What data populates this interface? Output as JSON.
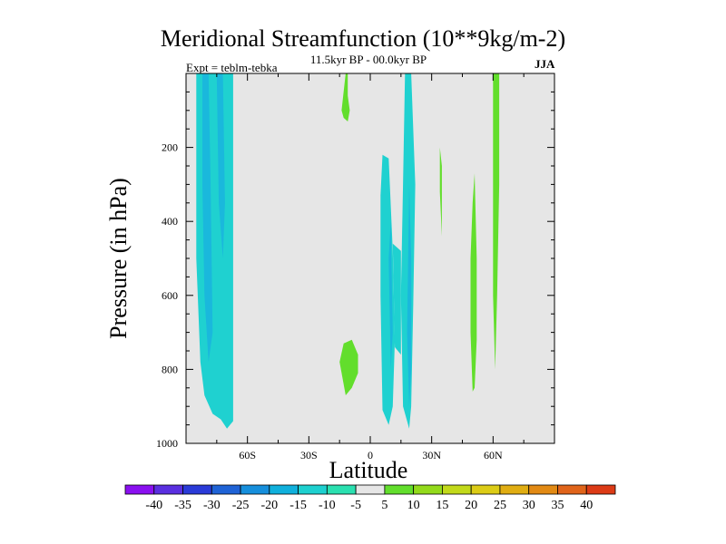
{
  "chart_data": {
    "type": "contour",
    "title": "Meridional Streamfunction (10**9kg/m-2)",
    "subtitle": "11.5kyr BP - 00.0kyr BP",
    "experiment_label": "Expt = teblm-tebka",
    "season": "JJA",
    "xlabel": "Latitude",
    "ylabel": "Pressure (in hPa)",
    "xlim": [
      -90,
      90
    ],
    "ylim": [
      1000,
      0
    ],
    "x_ticks": [
      {
        "value": -60,
        "label": "60S"
      },
      {
        "value": -30,
        "label": "30S"
      },
      {
        "value": 0,
        "label": "0"
      },
      {
        "value": 30,
        "label": "30N"
      },
      {
        "value": 60,
        "label": "60N"
      }
    ],
    "y_ticks": [
      {
        "value": 200,
        "label": "200"
      },
      {
        "value": 400,
        "label": "400"
      },
      {
        "value": 600,
        "label": "600"
      },
      {
        "value": 800,
        "label": "800"
      },
      {
        "value": 1000,
        "label": "1000"
      }
    ],
    "background_color": "#e6e6e6",
    "colorbar": {
      "levels": [
        -40,
        -35,
        -30,
        -25,
        -20,
        -15,
        -10,
        -5,
        5,
        10,
        15,
        20,
        25,
        30,
        35,
        40
      ],
      "colors": [
        "#8a10f0",
        "#5a2fe0",
        "#2a3bd8",
        "#1f63d6",
        "#168fdc",
        "#10b0dc",
        "#1dd0cf",
        "#2ae0b0",
        "#e6e6e6",
        "#62de2c",
        "#93da1b",
        "#c2d91a",
        "#dccc16",
        "#e0ad12",
        "#e28a14",
        "#e0641a",
        "#dc3b16"
      ]
    },
    "regions": [
      {
        "name": "region-70s-band",
        "level": "-10",
        "color": "#1fd1d0",
        "points": [
          [
            -85,
            0
          ],
          [
            -67,
            0
          ],
          [
            -67,
            940
          ],
          [
            -70,
            960
          ],
          [
            -73,
            935
          ],
          [
            -77,
            920
          ],
          [
            -81,
            870
          ],
          [
            -83,
            780
          ],
          [
            -85,
            500
          ]
        ]
      },
      {
        "name": "region-75s-core",
        "level": "-15",
        "color": "#1ab8dc",
        "points": [
          [
            -82,
            0
          ],
          [
            -79,
            0
          ],
          [
            -78,
            300
          ],
          [
            -77,
            700
          ],
          [
            -79,
            780
          ],
          [
            -81,
            600
          ],
          [
            -82,
            300
          ]
        ]
      },
      {
        "name": "region-70s-core",
        "level": "-15",
        "color": "#1ab8dc",
        "points": [
          [
            -75,
            0
          ],
          [
            -72,
            0
          ],
          [
            -71,
            350
          ],
          [
            -72,
            500
          ],
          [
            -74,
            350
          ]
        ]
      },
      {
        "name": "region-10s-south-patch",
        "level": "5",
        "color": "#62de2c",
        "points": [
          [
            -12,
            870
          ],
          [
            -15,
            780
          ],
          [
            -13,
            730
          ],
          [
            -9,
            720
          ],
          [
            -6,
            760
          ],
          [
            -6,
            810
          ],
          [
            -9,
            850
          ]
        ]
      },
      {
        "name": "region-10s-north-patch",
        "level": "5",
        "color": "#62de2c",
        "points": [
          [
            -12,
            0
          ],
          [
            -11,
            0
          ],
          [
            -11,
            60
          ],
          [
            -10,
            100
          ],
          [
            -11,
            130
          ],
          [
            -13,
            120
          ],
          [
            -14,
            100
          ]
        ]
      },
      {
        "name": "region-eq-band",
        "level": "-10",
        "color": "#1fd1d0",
        "points": [
          [
            5,
            330
          ],
          [
            6,
            220
          ],
          [
            9,
            230
          ],
          [
            11,
            480
          ],
          [
            12,
            720
          ],
          [
            11,
            900
          ],
          [
            9,
            950
          ],
          [
            6,
            910
          ],
          [
            5,
            600
          ]
        ]
      },
      {
        "name": "region-15n-band",
        "level": "-10",
        "color": "#1fd1d0",
        "points": [
          [
            17,
            0
          ],
          [
            20,
            0
          ],
          [
            22,
            300
          ],
          [
            21,
            620
          ],
          [
            20,
            900
          ],
          [
            19,
            960
          ],
          [
            16,
            900
          ],
          [
            15,
            600
          ],
          [
            16,
            300
          ]
        ]
      },
      {
        "name": "region-10n-bridge",
        "level": "-10",
        "color": "#1fd1d0",
        "points": [
          [
            11,
            460
          ],
          [
            15,
            480
          ],
          [
            15,
            760
          ],
          [
            12,
            740
          ]
        ]
      },
      {
        "name": "region-eq-core",
        "level": "-15",
        "color": "#1ab8dc",
        "points": [
          [
            9,
            500
          ],
          [
            10,
            400
          ],
          [
            11,
            700
          ],
          [
            10,
            800
          ]
        ]
      },
      {
        "name": "region-15n-core",
        "level": "-15",
        "color": "#1ab8dc",
        "points": [
          [
            19,
            300
          ],
          [
            20,
            500
          ],
          [
            20,
            800
          ],
          [
            19,
            900
          ],
          [
            18,
            700
          ]
        ]
      },
      {
        "name": "region-35n-band",
        "level": "5",
        "color": "#62de2c",
        "points": [
          [
            34,
            200
          ],
          [
            35,
            250
          ],
          [
            35,
            440
          ],
          [
            34,
            320
          ]
        ]
      },
      {
        "name": "region-50n-band",
        "level": "5",
        "color": "#62de2c",
        "points": [
          [
            49,
            500
          ],
          [
            50,
            350
          ],
          [
            51,
            270
          ],
          [
            52,
            500
          ],
          [
            52,
            720
          ],
          [
            51,
            850
          ],
          [
            50,
            860
          ],
          [
            49,
            700
          ]
        ]
      },
      {
        "name": "region-60n-band",
        "level": "5",
        "color": "#62de2c",
        "points": [
          [
            60,
            0
          ],
          [
            63,
            0
          ],
          [
            63,
            300
          ],
          [
            62,
            600
          ],
          [
            61,
            800
          ],
          [
            60,
            600
          ]
        ]
      }
    ]
  }
}
